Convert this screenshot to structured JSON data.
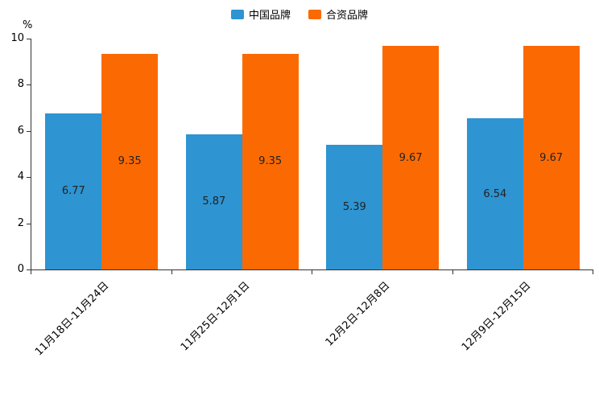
{
  "chart_data": {
    "type": "bar",
    "title": "",
    "categories": [
      "11月18日-11月24日",
      "11月25日-12月1日",
      "12月2日-12月8日",
      "12月9日-12月15日"
    ],
    "series": [
      {
        "name": "中国品牌",
        "color": "#2e94d2",
        "values": [
          6.77,
          5.87,
          5.39,
          6.54
        ]
      },
      {
        "name": "合资品牌",
        "color": "#fb6a02",
        "values": [
          9.35,
          9.35,
          9.67,
          9.67
        ]
      }
    ],
    "xlabel": "",
    "ylabel": "%",
    "ylim": [
      0,
      10
    ],
    "yticks": [
      0,
      2,
      4,
      6,
      8,
      10
    ],
    "grid": false,
    "legend_position": "top",
    "data_labels": true
  }
}
